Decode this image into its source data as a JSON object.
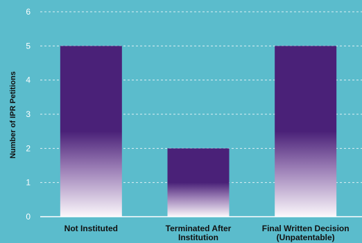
{
  "chart_data": {
    "type": "bar",
    "title": "",
    "xlabel": "",
    "ylabel": "Number of IPR Petitions",
    "categories": [
      [
        "Not Instituted"
      ],
      [
        "Terminated After",
        "Institution"
      ],
      [
        "Final Written Decision",
        "(Unpatentable)"
      ]
    ],
    "values": [
      5,
      2,
      5
    ],
    "ylim": [
      0,
      6
    ],
    "yticks": [
      0,
      1,
      2,
      3,
      4,
      5,
      6
    ],
    "grid": true,
    "legend": "none"
  },
  "colors": {
    "background": "#5bbccc",
    "bar_dark": "#4a2178",
    "bar_light": "#fbf7fb",
    "grid": "#ffffff",
    "axis": "#ffffff",
    "tick_text": "#ffffff",
    "label_text": "#111111"
  }
}
